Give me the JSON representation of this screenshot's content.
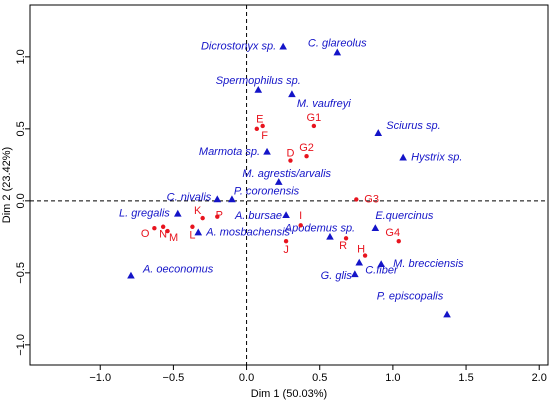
{
  "chart_data": {
    "type": "scatter",
    "xlabel": "Dim 1 (50.03%)",
    "ylabel": "Dim 2 (23.42%)",
    "xlim": [
      -1.48,
      2.06
    ],
    "ylim": [
      -1.14,
      1.36
    ],
    "xticks": [
      {
        "value": -1,
        "label": "−1.0"
      },
      {
        "value": -0.5,
        "label": "−0.5"
      },
      {
        "value": 0,
        "label": "0.0"
      },
      {
        "value": 0.5,
        "label": "0.5"
      },
      {
        "value": 1,
        "label": "1.0"
      },
      {
        "value": 1.5,
        "label": "1.5"
      },
      {
        "value": 2,
        "label": "2.0"
      }
    ],
    "yticks": [
      {
        "value": -1,
        "label": "−1.0"
      },
      {
        "value": -0.5,
        "label": "−0.5"
      },
      {
        "value": 0,
        "label": "0.0"
      },
      {
        "value": 0.5,
        "label": "0.5"
      },
      {
        "value": 1,
        "label": "1.0"
      }
    ],
    "hline": 0,
    "vline": 0,
    "series": [
      {
        "color": "#1414c8",
        "marker": "triangle",
        "labels": [
          "Dicrostonyx sp.",
          "C. glareolus",
          "Spermophilus sp.",
          "M. vaufreyi",
          "Sciurus sp.",
          "Marmota sp.",
          "Hystrix sp.",
          "M. agrestis/arvalis",
          "C. nivalis",
          "P. coronensis",
          "L. gregalis",
          "A. bursae",
          "E.quercinus",
          "A. mosbachensis",
          "Apodemus sp.",
          "M. brecciensis",
          "C.fiber",
          "G. glis",
          "A. oeconomus",
          "P. episcopalis"
        ],
        "x": [
          0.25,
          0.62,
          0.08,
          0.31,
          0.9,
          0.14,
          1.07,
          0.22,
          -0.2,
          -0.1,
          -0.47,
          0.27,
          0.88,
          -0.33,
          0.57,
          0.92,
          0.77,
          0.74,
          -0.79,
          1.37
        ],
        "values": [
          1.07,
          1.03,
          0.77,
          0.74,
          0.47,
          0.34,
          0.3,
          0.13,
          0.01,
          0.01,
          -0.09,
          -0.1,
          -0.19,
          -0.22,
          -0.25,
          -0.44,
          -0.43,
          -0.51,
          -0.52,
          -0.79
        ]
      },
      {
        "color": "#e8141e",
        "marker": "circle",
        "labels": [
          "G1",
          "E",
          "F",
          "G2",
          "D",
          "G3",
          "K",
          "P",
          "I",
          "O",
          "N",
          "M",
          "L",
          "G4",
          "R",
          "J",
          "H"
        ],
        "x": [
          0.46,
          0.07,
          0.11,
          0.41,
          0.3,
          0.75,
          -0.3,
          -0.2,
          0.37,
          -0.63,
          -0.57,
          -0.54,
          -0.37,
          1.04,
          0.68,
          0.27,
          0.81
        ],
        "values": [
          0.52,
          0.5,
          0.52,
          0.31,
          0.28,
          0.01,
          -0.12,
          -0.11,
          -0.17,
          -0.19,
          -0.18,
          -0.21,
          -0.18,
          -0.28,
          -0.26,
          -0.28,
          -0.38
        ]
      }
    ]
  }
}
